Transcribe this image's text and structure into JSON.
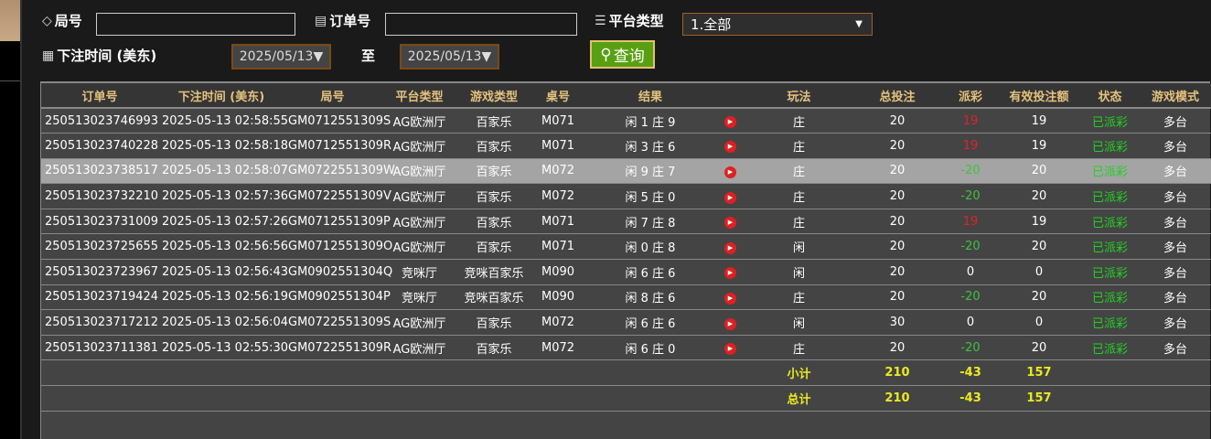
{
  "filters": {
    "round_label": "局号",
    "round_value": "",
    "order_label": "订单号",
    "order_value": "",
    "platform_label": "平台类型",
    "platform_value": "1.全部",
    "time_label": "下注时间 (美东)",
    "date_from": "2025/05/13▼",
    "to_label": "至",
    "date_to": "2025/05/13▼",
    "search_label": "查询"
  },
  "table": {
    "headers": [
      "订单号",
      "下注时间 (美东)",
      "局号",
      "平台类型",
      "游戏类型",
      "桌号",
      "结果",
      "",
      "玩法",
      "总投注",
      "派彩",
      "有效投注额",
      "状态",
      "游戏模式"
    ],
    "rows": [
      [
        "250513023746993",
        "2025-05-13 02:58:55",
        "GM0712551309S",
        "AG欧洲厅",
        "百家乐",
        "M071",
        "闲 1 庄 9",
        "庄",
        "20",
        "19",
        "19",
        "已派彩",
        "多台"
      ],
      [
        "250513023740228",
        "2025-05-13 02:58:18",
        "GM0712551309R",
        "AG欧洲厅",
        "百家乐",
        "M071",
        "闲 3 庄 6",
        "庄",
        "20",
        "19",
        "19",
        "已派彩",
        "多台"
      ],
      [
        "250513023738517",
        "2025-05-13 02:58:07",
        "GM0722551309W",
        "AG欧洲厅",
        "百家乐",
        "M072",
        "闲 9 庄 7",
        "庄",
        "20",
        "-20",
        "20",
        "已派彩",
        "多台"
      ],
      [
        "250513023732210",
        "2025-05-13 02:57:36",
        "GM0722551309V",
        "AG欧洲厅",
        "百家乐",
        "M072",
        "闲 5 庄 0",
        "庄",
        "20",
        "-20",
        "20",
        "已派彩",
        "多台"
      ],
      [
        "250513023731009",
        "2025-05-13 02:57:26",
        "GM0712551309P",
        "AG欧洲厅",
        "百家乐",
        "M071",
        "闲 7 庄 8",
        "庄",
        "20",
        "19",
        "19",
        "已派彩",
        "多台"
      ],
      [
        "250513023725655",
        "2025-05-13 02:56:56",
        "GM0712551309O",
        "AG欧洲厅",
        "百家乐",
        "M071",
        "闲 0 庄 8",
        "闲",
        "20",
        "-20",
        "20",
        "已派彩",
        "多台"
      ],
      [
        "250513023723967",
        "2025-05-13 02:56:43",
        "GM0902551304Q",
        "竞咪厅",
        "竞咪百家乐",
        "M090",
        "闲 6 庄 6",
        "闲",
        "20",
        "0",
        "0",
        "已派彩",
        "多台"
      ],
      [
        "250513023719424",
        "2025-05-13 02:56:19",
        "GM0902551304P",
        "竞咪厅",
        "竞咪百家乐",
        "M090",
        "闲 8 庄 6",
        "庄",
        "20",
        "-20",
        "20",
        "已派彩",
        "多台"
      ],
      [
        "250513023717212",
        "2025-05-13 02:56:04",
        "GM0722551309S",
        "AG欧洲厅",
        "百家乐",
        "M072",
        "闲 6 庄 6",
        "闲",
        "30",
        "0",
        "0",
        "已派彩",
        "多台"
      ],
      [
        "250513023711381",
        "2025-05-13 02:55:30",
        "GM0722551309R",
        "AG欧洲厅",
        "百家乐",
        "M072",
        "闲 6 庄 0",
        "庄",
        "20",
        "-20",
        "20",
        "已派彩",
        "多台"
      ]
    ],
    "highlighted_row": 2,
    "subtotal": {
      "label": "小计",
      "total_bet": "210",
      "payout": "-43",
      "valid_bet": "157"
    },
    "total": {
      "label": "总计",
      "total_bet": "210",
      "payout": "-43",
      "valid_bet": "157"
    }
  },
  "colors": {
    "header_text": "#e4c27e",
    "payout_positive": "#e5202a",
    "payout_negative": "#3ec23e",
    "status": "#22d022",
    "totals": "#eaea20",
    "button": "#58a012"
  }
}
